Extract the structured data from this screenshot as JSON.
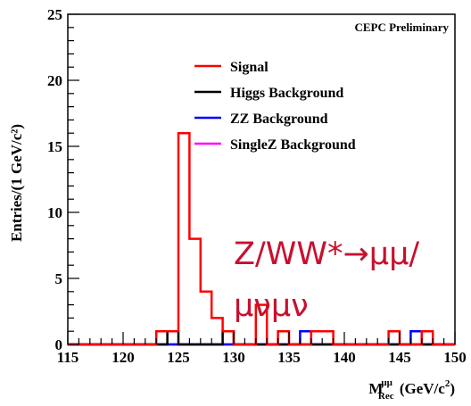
{
  "chart_data": {
    "type": "histogram",
    "title": "",
    "annotation": "CEPC Preliminary",
    "xlabel": {
      "main": "M",
      "sup": "μμ",
      "sub": "Rec",
      "units": "(GeV/c",
      "units_sup": "2",
      "units_close": ")"
    },
    "ylabel": "Entries/(1 GeV/c²)",
    "xlim": [
      115,
      150
    ],
    "ylim": [
      0,
      25
    ],
    "xticks": [
      115,
      120,
      125,
      130,
      135,
      140,
      145,
      150
    ],
    "yticks": [
      0,
      5,
      10,
      15,
      20,
      25
    ],
    "bin_width": 1,
    "bin_start": 115,
    "legend_position": "top-center",
    "series": [
      {
        "name": "Signal",
        "color": "#ff0000",
        "values": [
          0,
          0,
          0,
          0,
          0,
          0,
          0,
          0,
          1,
          1,
          16,
          8,
          4,
          2,
          1,
          0,
          0,
          3,
          0,
          1,
          0,
          0,
          1,
          1,
          0,
          0,
          0,
          0,
          0,
          1,
          0,
          0,
          1,
          0,
          0
        ]
      },
      {
        "name": "Higgs Background",
        "color": "#000000",
        "values": [
          0,
          0,
          0,
          0,
          0,
          0,
          0,
          0,
          0,
          1,
          0,
          0,
          0,
          0,
          1,
          0,
          0,
          0,
          0,
          0,
          0,
          0,
          0,
          0,
          0,
          0,
          0,
          0,
          0,
          0,
          0,
          0,
          0,
          0,
          0
        ]
      },
      {
        "name": "ZZ Background",
        "color": "#0000ff",
        "values": [
          0,
          0,
          0,
          0,
          0,
          0,
          0,
          0,
          0,
          0,
          0,
          0,
          0,
          0,
          0,
          0,
          0,
          0,
          0,
          0,
          0,
          1,
          0,
          0,
          0,
          0,
          0,
          0,
          0,
          0,
          0,
          1,
          0,
          0,
          0
        ]
      },
      {
        "name": "SingleZ Background",
        "color": "#ff00ff",
        "values": [
          0,
          0,
          0,
          0,
          0,
          0,
          0,
          0,
          0,
          0,
          0,
          0,
          0,
          0,
          0,
          0,
          0,
          0,
          0,
          0,
          0,
          0,
          0,
          0,
          0,
          0,
          0,
          0,
          0,
          0,
          0,
          0,
          0,
          0,
          0
        ]
      }
    ]
  },
  "overlay": {
    "line1": "Z/WW*→μμ/",
    "line2": "μνμν",
    "color": "#c8102e"
  }
}
